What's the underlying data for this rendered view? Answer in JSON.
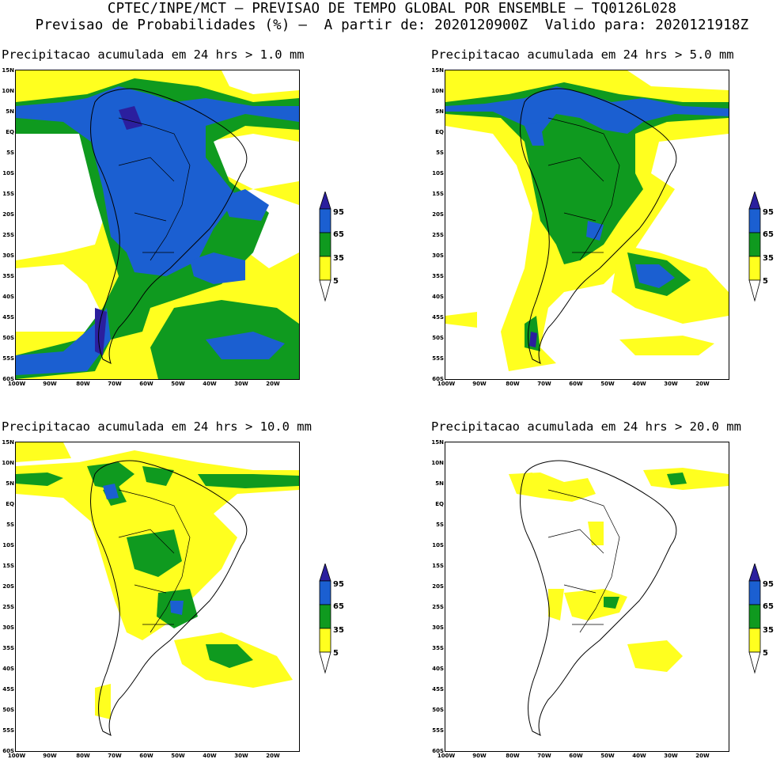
{
  "header": {
    "line1": "CPTEC/INPE/MCT – PREVISAO DE TEMPO GLOBAL POR ENSEMBLE – TQ0126L028",
    "line2": "Previsao de Probabilidades (%) –  A partir de: 2020120900Z  Valido para: 2020121918Z"
  },
  "latitude_labels": [
    "15N",
    "10N",
    "5N",
    "EQ",
    "5S",
    "10S",
    "15S",
    "20S",
    "25S",
    "30S",
    "35S",
    "40S",
    "45S",
    "50S",
    "55S",
    "60S"
  ],
  "longitude_labels": [
    "100W",
    "90W",
    "80W",
    "70W",
    "60W",
    "50W",
    "40W",
    "30W",
    "20W"
  ],
  "legend": {
    "labels": [
      "95",
      "65",
      "35",
      "5"
    ],
    "colors": {
      "above_95": "#2b1f9e",
      "c65_95": "#1b5fd1",
      "c35_65": "#0f9a1f",
      "c5_35": "#ffff1f",
      "below_5": "#ffffff"
    }
  },
  "panels": [
    {
      "title": "Precipitacao acumulada em 24 hrs > 1.0 mm",
      "threshold": "1.0 mm"
    },
    {
      "title": "Precipitacao acumulada em 24 hrs > 5.0 mm",
      "threshold": "5.0 mm"
    },
    {
      "title": "Precipitacao acumulada em 24 hrs > 10.0 mm",
      "threshold": "10.0 mm"
    },
    {
      "title": "Precipitacao acumulada em 24 hrs > 20.0 mm",
      "threshold": "20.0 mm"
    }
  ]
}
